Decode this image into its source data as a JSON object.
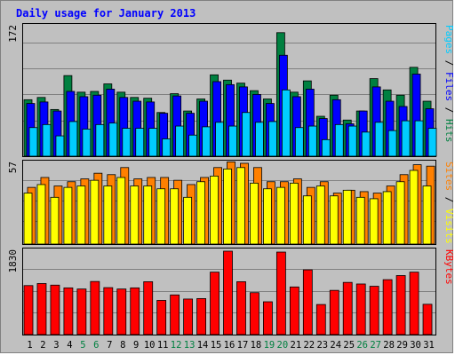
{
  "title": "Daily usage for January 2013",
  "chart_data": [
    {
      "type": "bar",
      "name": "pages-files-hits",
      "ymax_label": "172",
      "ylim": [
        0,
        172
      ],
      "right_label": [
        {
          "text": "Pages",
          "color": "#00ccff"
        },
        {
          "text": " / ",
          "color": "#000000"
        },
        {
          "text": "Files",
          "color": "#0000ff"
        },
        {
          "text": " / ",
          "color": "#000000"
        },
        {
          "text": "Hits",
          "color": "#008040"
        }
      ],
      "categories": [
        "1",
        "2",
        "3",
        "4",
        "5",
        "6",
        "7",
        "8",
        "9",
        "10",
        "11",
        "12",
        "13",
        "14",
        "15",
        "16",
        "17",
        "18",
        "19",
        "20",
        "21",
        "22",
        "23",
        "24",
        "25",
        "26",
        "27",
        "28",
        "29",
        "30",
        "31"
      ],
      "series": [
        {
          "name": "Hits",
          "color": "#008040",
          "values": [
            75,
            78,
            62,
            107,
            85,
            86,
            96,
            85,
            78,
            77,
            58,
            83,
            60,
            76,
            108,
            101,
            97,
            87,
            76,
            164,
            85,
            100,
            53,
            81,
            48,
            60,
            103,
            88,
            81,
            118,
            73
          ]
        },
        {
          "name": "Files",
          "color": "#0000ff",
          "values": [
            70,
            72,
            60,
            86,
            79,
            81,
            89,
            78,
            73,
            72,
            57,
            80,
            57,
            73,
            99,
            95,
            92,
            82,
            70,
            134,
            79,
            89,
            50,
            75,
            43,
            60,
            92,
            73,
            66,
            109,
            63
          ]
        },
        {
          "name": "Pages",
          "color": "#00ccff",
          "values": [
            38,
            42,
            27,
            46,
            36,
            42,
            44,
            37,
            37,
            37,
            23,
            40,
            28,
            39,
            45,
            40,
            58,
            45,
            46,
            88,
            38,
            40,
            22,
            42,
            40,
            32,
            45,
            34,
            47,
            47,
            37
          ]
        }
      ]
    },
    {
      "type": "bar",
      "name": "sites-visits",
      "ymax_label": "57",
      "ylim": [
        0,
        57
      ],
      "right_label": [
        {
          "text": "Sites",
          "color": "#ff8000"
        },
        {
          "text": " / ",
          "color": "#000000"
        },
        {
          "text": "Visits",
          "color": "#ffff00"
        }
      ],
      "categories": [
        "1",
        "2",
        "3",
        "4",
        "5",
        "6",
        "7",
        "8",
        "9",
        "10",
        "11",
        "12",
        "13",
        "14",
        "15",
        "16",
        "17",
        "18",
        "19",
        "20",
        "21",
        "22",
        "23",
        "24",
        "25",
        "26",
        "27",
        "28",
        "29",
        "30",
        "31"
      ],
      "series": [
        {
          "name": "Sites",
          "color": "#ff8000",
          "values": [
            40,
            47,
            41,
            44,
            46,
            50,
            49,
            54,
            46,
            47,
            47,
            45,
            42,
            47,
            54,
            58,
            57,
            54,
            44,
            44,
            46,
            40,
            44,
            36,
            38,
            37,
            36,
            41,
            49,
            56,
            55
          ]
        },
        {
          "name": "Visits",
          "color": "#ffff00",
          "values": [
            36,
            42,
            33,
            40,
            41,
            45,
            41,
            47,
            41,
            41,
            39,
            39,
            33,
            44,
            48,
            53,
            54,
            43,
            39,
            40,
            43,
            34,
            41,
            34,
            38,
            33,
            32,
            37,
            44,
            52,
            41
          ]
        }
      ]
    },
    {
      "type": "bar",
      "name": "kbytes",
      "ymax_label": "1830",
      "ylim": [
        0,
        1830
      ],
      "right_label": [
        {
          "text": "KBytes",
          "color": "#ff0000"
        }
      ],
      "categories": [
        "1",
        "2",
        "3",
        "4",
        "5",
        "6",
        "7",
        "8",
        "9",
        "10",
        "11",
        "12",
        "13",
        "14",
        "15",
        "16",
        "17",
        "18",
        "19",
        "20",
        "21",
        "22",
        "23",
        "24",
        "25",
        "26",
        "27",
        "28",
        "29",
        "30",
        "31"
      ],
      "series": [
        {
          "name": "KBytes",
          "color": "#ff0000",
          "values": [
            1075,
            1120,
            1085,
            1025,
            1000,
            1165,
            1030,
            1000,
            1025,
            1160,
            750,
            870,
            780,
            790,
            1370,
            1830,
            1160,
            920,
            720,
            1810,
            1045,
            1420,
            660,
            970,
            1145,
            1110,
            1060,
            1205,
            1295,
            1370,
            665
          ]
        }
      ]
    }
  ],
  "x_axis": {
    "labels": [
      "1",
      "2",
      "3",
      "4",
      "5",
      "6",
      "7",
      "8",
      "9",
      "10",
      "11",
      "12",
      "13",
      "14",
      "15",
      "16",
      "17",
      "18",
      "19",
      "20",
      "21",
      "22",
      "23",
      "24",
      "25",
      "26",
      "27",
      "28",
      "29",
      "30",
      "31"
    ],
    "label_colors": [
      "#000000",
      "#000000",
      "#000000",
      "#000000",
      "#008040",
      "#008040",
      "#000000",
      "#000000",
      "#000000",
      "#000000",
      "#000000",
      "#008040",
      "#008040",
      "#000000",
      "#000000",
      "#000000",
      "#000000",
      "#000000",
      "#008040",
      "#008040",
      "#000000",
      "#000000",
      "#000000",
      "#000000",
      "#000000",
      "#008040",
      "#008040",
      "#000000",
      "#000000",
      "#000000",
      "#000000"
    ]
  }
}
